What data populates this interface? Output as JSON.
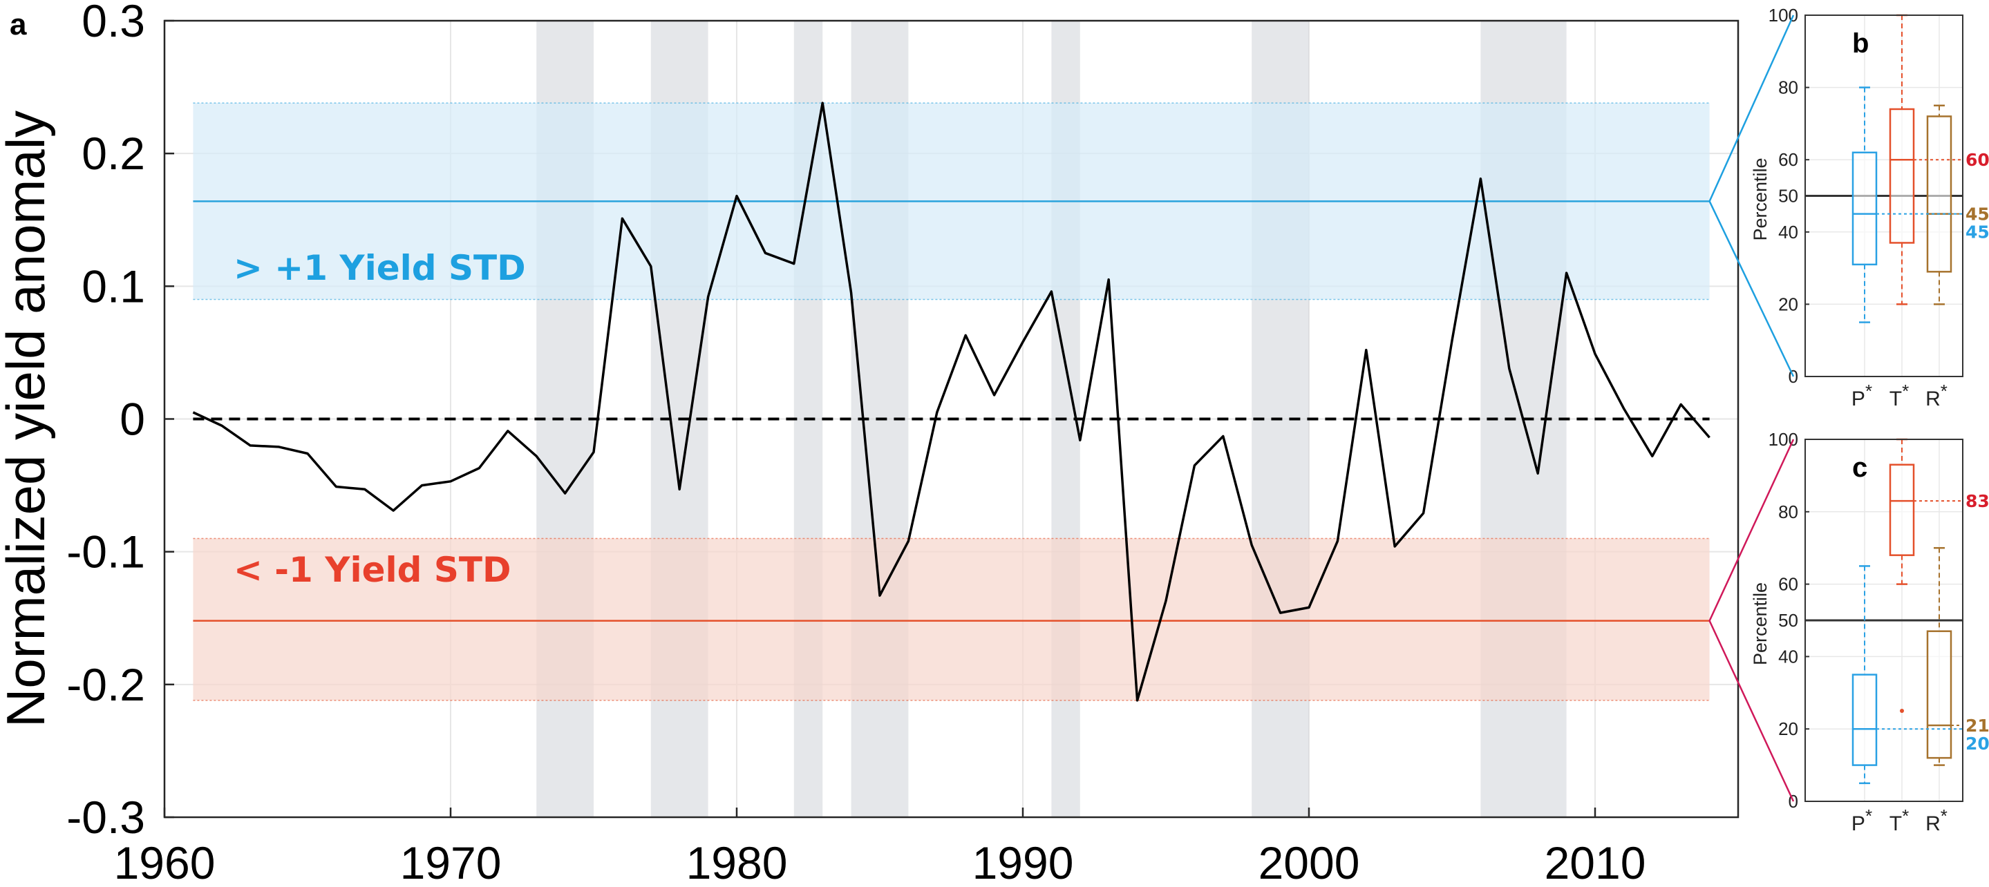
{
  "panel_labels": {
    "a": "a",
    "b": "b",
    "c": "c"
  },
  "band_labels": {
    "upper": "> +1 Yield STD",
    "lower": "< -1 Yield STD"
  },
  "colors": {
    "line": "#000000",
    "upper_band": "#d6ebf8",
    "upper_line": "#29a3dc",
    "upper_text": "#1ea0e0",
    "lower_band": "#f6d5cc",
    "lower_line": "#e4502b",
    "lower_text": "#e8402c",
    "shade": "#d0d3d8",
    "b_connector": "#1ea0e0",
    "c_connector": "#d0195a",
    "P": "#2aa1e4",
    "T": "#e4502b",
    "R": "#a6722d",
    "T_value_text": "#d81e2c"
  },
  "chart_data": [
    {
      "type": "line",
      "panel": "a",
      "title": "",
      "xlabel": "",
      "ylabel": "Normalized yield anomaly",
      "xlim": [
        1960,
        2015
      ],
      "ylim": [
        -0.3,
        0.3
      ],
      "xticks": [
        1960,
        1970,
        1980,
        1990,
        2000,
        2010
      ],
      "xtick_labels": [
        "1960",
        "1970",
        "1980",
        "1990",
        "2000",
        "2010"
      ],
      "yticks": [
        -0.3,
        -0.2,
        -0.1,
        0,
        0.1,
        0.2,
        0.3
      ],
      "ytick_labels": [
        "-0.3",
        "-0.2",
        "-0.1",
        "0",
        "0.1",
        "0.2",
        "0.3"
      ],
      "grid": true,
      "series": [
        {
          "x": [
            1961,
            1962,
            1963,
            1964,
            1965,
            1966,
            1967,
            1968,
            1969,
            1970,
            1971,
            1972,
            1973,
            1974,
            1975,
            1976,
            1977,
            1978,
            1979,
            1980,
            1981,
            1982,
            1983,
            1984,
            1985,
            1986,
            1987,
            1988,
            1989,
            1990,
            1991,
            1992,
            1993,
            1994,
            1995,
            1996,
            1997,
            1998,
            1999,
            2000,
            2001,
            2002,
            2003,
            2004,
            2005,
            2006,
            2007,
            2008,
            2009,
            2010,
            2011,
            2012,
            2013,
            2014
          ],
          "values": [
            0.005,
            -0.005,
            -0.02,
            -0.021,
            -0.026,
            -0.051,
            -0.053,
            -0.069,
            -0.05,
            -0.047,
            -0.037,
            -0.009,
            -0.028,
            -0.056,
            -0.025,
            0.151,
            0.115,
            -0.053,
            0.092,
            0.168,
            0.125,
            0.117,
            0.238,
            0.095,
            -0.133,
            -0.092,
            0.005,
            0.063,
            0.018,
            0.058,
            0.096,
            -0.016,
            0.105,
            -0.212,
            -0.137,
            -0.035,
            -0.013,
            -0.095,
            -0.146,
            -0.142,
            -0.092,
            0.052,
            -0.096,
            -0.071,
            0.059,
            0.181,
            0.038,
            -0.041,
            0.11,
            0.049,
            0.008,
            -0.028,
            0.011,
            -0.014
          ]
        }
      ],
      "zero_line": 0,
      "shaded_periods": [
        [
          1973,
          1975
        ],
        [
          1977,
          1979
        ],
        [
          1982,
          1983
        ],
        [
          1984,
          1986
        ],
        [
          1991,
          1992
        ],
        [
          1998,
          2000
        ],
        [
          2006,
          2009
        ]
      ],
      "upper_band": {
        "low": 0.09,
        "high": 0.238,
        "mean": 0.164
      },
      "lower_band": {
        "low": -0.212,
        "high": -0.09,
        "mean": -0.152
      }
    },
    {
      "type": "box",
      "panel": "b",
      "ylabel": "Percentile",
      "ylim": [
        0,
        100
      ],
      "yticks": [
        0,
        20,
        40,
        50,
        60,
        80,
        100
      ],
      "ytick_labels": [
        "0",
        "20",
        "40",
        "50",
        "60",
        "80",
        "100"
      ],
      "reference_line": 50,
      "categories": [
        "P",
        "T",
        "R"
      ],
      "category_superscript": "*",
      "boxes": [
        {
          "name": "P",
          "min": 15,
          "q1": 31,
          "median": 45,
          "q3": 62,
          "max": 80,
          "outliers": []
        },
        {
          "name": "T",
          "min": 20,
          "q1": 37,
          "median": 60,
          "q3": 74,
          "max": 100,
          "outliers": []
        },
        {
          "name": "R",
          "min": 20,
          "q1": 29,
          "median": 45,
          "q3": 72,
          "max": 75,
          "outliers": []
        }
      ],
      "median_labels": [
        {
          "name": "T",
          "value": 60,
          "text": "60"
        },
        {
          "name": "R",
          "value": 45,
          "text": "45"
        },
        {
          "name": "P",
          "value": 45,
          "text": "45"
        }
      ]
    },
    {
      "type": "box",
      "panel": "c",
      "ylabel": "Percentile",
      "ylim": [
        0,
        100
      ],
      "yticks": [
        0,
        20,
        40,
        50,
        60,
        80,
        100
      ],
      "ytick_labels": [
        "0",
        "20",
        "40",
        "50",
        "60",
        "80",
        "100"
      ],
      "reference_line": 50,
      "categories": [
        "P",
        "T",
        "R"
      ],
      "category_superscript": "*",
      "boxes": [
        {
          "name": "P",
          "min": 5,
          "q1": 10,
          "median": 20,
          "q3": 35,
          "max": 65,
          "outliers": []
        },
        {
          "name": "T",
          "min": 60,
          "q1": 68,
          "median": 83,
          "q3": 93,
          "max": 100,
          "outliers": [
            25
          ]
        },
        {
          "name": "R",
          "min": 10,
          "q1": 12,
          "median": 21,
          "q3": 47,
          "max": 70,
          "outliers": []
        }
      ],
      "median_labels": [
        {
          "name": "T",
          "value": 83,
          "text": "83"
        },
        {
          "name": "R",
          "value": 21,
          "text": "21"
        },
        {
          "name": "P",
          "value": 20,
          "text": "20"
        }
      ]
    }
  ]
}
